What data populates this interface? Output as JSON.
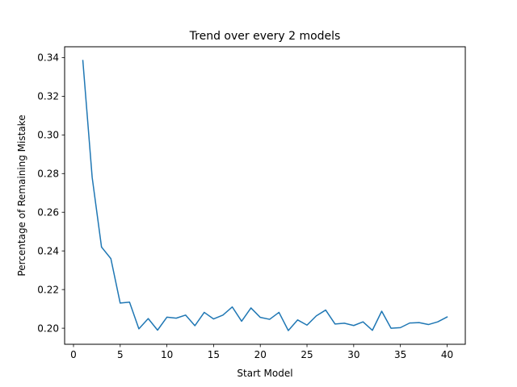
{
  "chart_data": {
    "type": "line",
    "title": "Trend over every 2 models",
    "xlabel": "Start Model",
    "ylabel": "Percentage of Remaining Mistake",
    "xlim": [
      -0.95,
      41.95
    ],
    "ylim": [
      0.1917,
      0.3456
    ],
    "xticks": [
      0,
      5,
      10,
      15,
      20,
      25,
      30,
      35,
      40
    ],
    "yticks": [
      0.2,
      0.22,
      0.24,
      0.26,
      0.28,
      0.3,
      0.32,
      0.34
    ],
    "ytick_labels": [
      "0.20",
      "0.22",
      "0.24",
      "0.26",
      "0.28",
      "0.30",
      "0.32",
      "0.34"
    ],
    "grid": false,
    "legend": "none",
    "series": [
      {
        "color": "#1f77b4",
        "x": [
          1,
          2,
          3,
          4,
          5,
          6,
          7,
          8,
          9,
          10,
          11,
          12,
          13,
          14,
          15,
          16,
          17,
          18,
          19,
          20,
          21,
          22,
          23,
          24,
          25,
          26,
          27,
          28,
          29,
          30,
          31,
          32,
          33,
          34,
          35,
          36,
          37,
          38,
          39,
          40
        ],
        "y": [
          0.3385,
          0.278,
          0.242,
          0.236,
          0.213,
          0.2135,
          0.1997,
          0.205,
          0.199,
          0.2057,
          0.2052,
          0.2068,
          0.2013,
          0.2082,
          0.2048,
          0.2068,
          0.211,
          0.2036,
          0.2105,
          0.2056,
          0.2046,
          0.2082,
          0.1988,
          0.2043,
          0.2016,
          0.2064,
          0.2094,
          0.2022,
          0.2026,
          0.2014,
          0.2033,
          0.1989,
          0.2088,
          0.2,
          0.2003,
          0.2027,
          0.2029,
          0.2019,
          0.2033,
          0.2058
        ]
      }
    ]
  }
}
